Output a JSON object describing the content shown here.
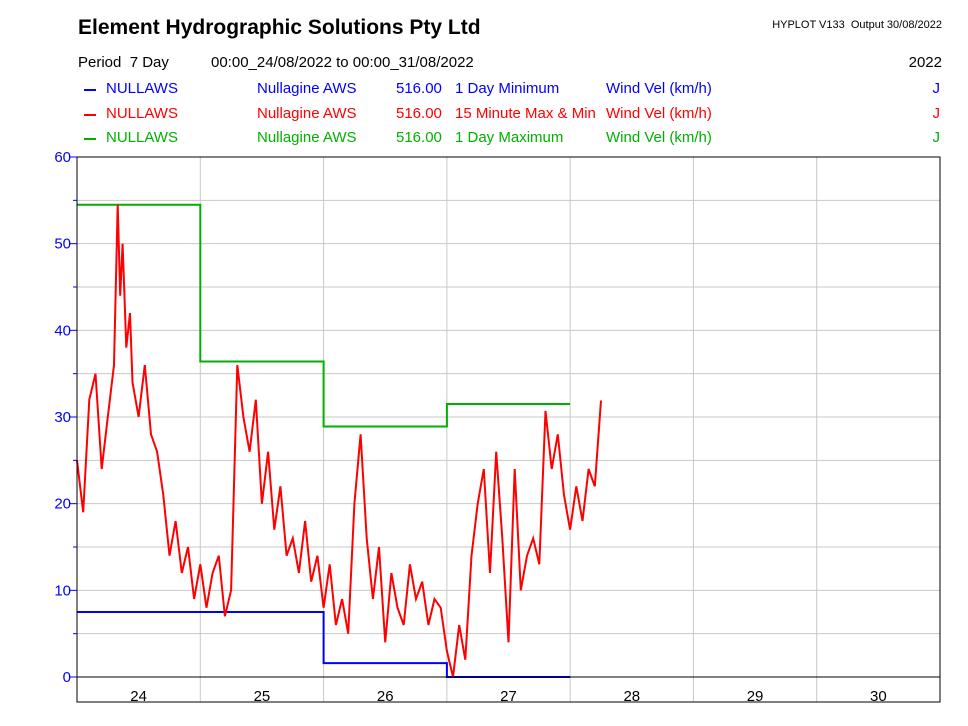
{
  "header": {
    "title": "Element Hydrographic Solutions Pty Ltd",
    "program": "HYPLOT V133  Output 30/08/2022",
    "period_label": "Period  7 Day",
    "period_range": "00:00_24/08/2022 to 00:00_31/08/2022",
    "year": "2022"
  },
  "legend": [
    {
      "site": "NULLAWS",
      "station": "Nullagine AWS",
      "number": "516.00",
      "stat": "1 Day Minimum",
      "variable": "Wind Vel (km/h)",
      "flag": "J",
      "color": "#0000ff"
    },
    {
      "site": "NULLAWS",
      "station": "Nullagine AWS",
      "number": "516.00",
      "stat": "15 Minute Max & Min",
      "variable": "Wind Vel (km/h)",
      "flag": "J",
      "color": "#ff0000"
    },
    {
      "site": "NULLAWS",
      "station": "Nullagine AWS",
      "number": "516.00",
      "stat": "1 Day Maximum",
      "variable": "Wind Vel (km/h)",
      "flag": "J",
      "color": "#00b000"
    }
  ],
  "chart_data": {
    "type": "line",
    "x_unit": "day of August 2022",
    "xlim": [
      24,
      31
    ],
    "ylim": [
      0,
      60
    ],
    "x_ticks": [
      "24",
      "25",
      "26",
      "27",
      "28",
      "29",
      "30"
    ],
    "y_ticks": [
      "0",
      "10",
      "20",
      "30",
      "40",
      "50",
      "60"
    ],
    "grid": true,
    "series": [
      {
        "name": "1 Day Minimum",
        "color": "#0000ff",
        "step": true,
        "x": [
          24,
          25,
          26,
          27,
          28
        ],
        "y": [
          7.5,
          7.5,
          1.6,
          0,
          0
        ]
      },
      {
        "name": "1 Day Maximum",
        "color": "#00b000",
        "step": true,
        "x": [
          24,
          25,
          26,
          27,
          28
        ],
        "y": [
          54.5,
          36.4,
          28.9,
          31.5,
          31.5
        ]
      },
      {
        "name": "15 Minute Max & Min",
        "color": "#ff0000",
        "step": false,
        "x": [
          24.0,
          24.05,
          24.1,
          24.15,
          24.2,
          24.25,
          24.3,
          24.33,
          24.35,
          24.37,
          24.4,
          24.43,
          24.45,
          24.5,
          24.55,
          24.6,
          24.65,
          24.7,
          24.75,
          24.8,
          24.85,
          24.9,
          24.95,
          25.0,
          25.05,
          25.1,
          25.15,
          25.2,
          25.25,
          25.3,
          25.35,
          25.4,
          25.45,
          25.5,
          25.55,
          25.6,
          25.65,
          25.7,
          25.75,
          25.8,
          25.85,
          25.9,
          25.95,
          26.0,
          26.05,
          26.1,
          26.15,
          26.2,
          26.25,
          26.3,
          26.35,
          26.4,
          26.45,
          26.5,
          26.55,
          26.6,
          26.65,
          26.7,
          26.75,
          26.8,
          26.85,
          26.9,
          26.95,
          27.0,
          27.05,
          27.1,
          27.15,
          27.2,
          27.25,
          27.3,
          27.35,
          27.4,
          27.45,
          27.5,
          27.55,
          27.6,
          27.65,
          27.7,
          27.75,
          27.8,
          27.85,
          27.9,
          27.95,
          28.0,
          28.05,
          28.1,
          28.15,
          28.2,
          28.25
        ],
        "y": [
          25,
          19,
          32,
          35,
          24,
          30,
          36,
          54.5,
          44,
          50,
          38,
          42,
          34,
          30,
          36,
          28,
          26,
          21,
          14,
          18,
          12,
          15,
          9,
          13,
          8,
          12,
          14,
          7,
          10,
          36,
          30,
          26,
          32,
          20,
          26,
          17,
          22,
          14,
          16,
          12,
          18,
          11,
          14,
          8,
          13,
          6,
          9,
          5,
          20,
          28,
          16,
          9,
          15,
          4,
          12,
          8,
          6,
          13,
          9,
          11,
          6,
          9,
          8,
          3,
          0,
          6,
          2,
          14,
          20,
          24,
          12,
          26,
          16,
          4,
          24,
          10,
          14,
          16,
          13,
          30.7,
          24,
          28,
          21,
          17,
          22,
          18,
          24,
          22,
          31.9
        ]
      }
    ]
  }
}
